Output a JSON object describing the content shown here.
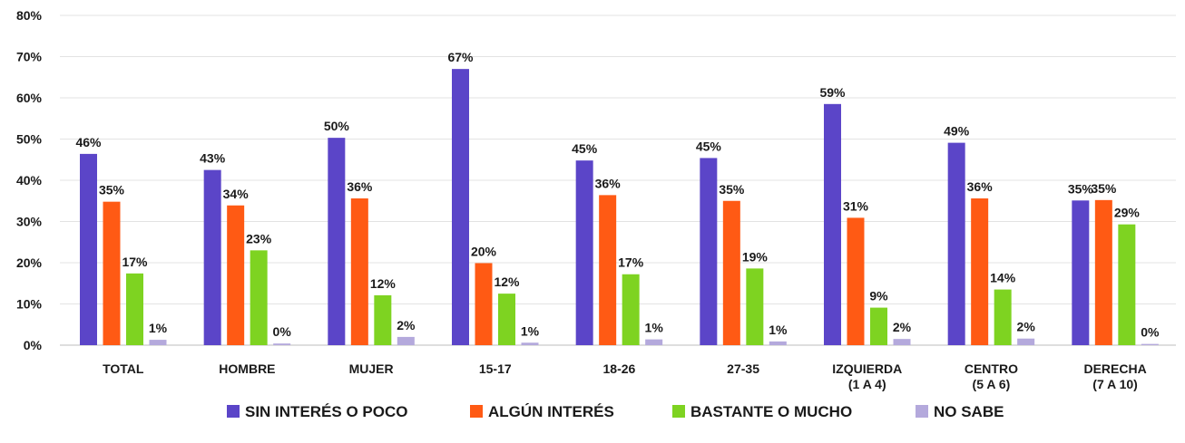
{
  "chart_data": {
    "type": "bar",
    "ylim": [
      0,
      80
    ],
    "yticks": [
      "0%",
      "10%",
      "20%",
      "30%",
      "40%",
      "50%",
      "60%",
      "70%",
      "80%"
    ],
    "grid": true,
    "legend_position": "bottom",
    "categories": [
      [
        "TOTAL"
      ],
      [
        "HOMBRE"
      ],
      [
        "MUJER"
      ],
      [
        "15-17"
      ],
      [
        "18-26"
      ],
      [
        "27-35"
      ],
      [
        "IZQUIERDA",
        "(1 A 4)"
      ],
      [
        "CENTRO",
        "(5 A 6)"
      ],
      [
        "DERECHA",
        "(7 A 10)"
      ]
    ],
    "series": [
      {
        "name": "SIN INTERÉS O POCO",
        "color": "#5b45c8",
        "values": [
          46.4,
          42.5,
          50.3,
          67.0,
          44.8,
          45.4,
          58.5,
          49.1,
          35.1
        ],
        "labels": [
          "46%",
          "43%",
          "50%",
          "67%",
          "45%",
          "45%",
          "59%",
          "49%",
          "35%"
        ]
      },
      {
        "name": "ALGÚN INTERÉS",
        "color": "#ff5a14",
        "values": [
          34.8,
          33.9,
          35.6,
          19.9,
          36.4,
          35.0,
          30.9,
          35.6,
          35.2
        ],
        "labels": [
          "35%",
          "34%",
          "36%",
          "20%",
          "36%",
          "35%",
          "31%",
          "36%",
          "35%"
        ]
      },
      {
        "name": "BASTANTE O MUCHO",
        "color": "#7ed321",
        "values": [
          17.4,
          23.0,
          12.1,
          12.5,
          17.2,
          18.6,
          9.1,
          13.5,
          29.3
        ],
        "labels": [
          "17%",
          "23%",
          "12%",
          "12%",
          "17%",
          "19%",
          "9%",
          "14%",
          "29%"
        ]
      },
      {
        "name": "NO SABE",
        "color": "#b4a9dc",
        "values": [
          1.3,
          0.4,
          2.0,
          0.6,
          1.4,
          0.9,
          1.5,
          1.6,
          0.3
        ],
        "labels": [
          "1%",
          "0%",
          "2%",
          "1%",
          "1%",
          "1%",
          "2%",
          "2%",
          "0%"
        ]
      }
    ]
  }
}
